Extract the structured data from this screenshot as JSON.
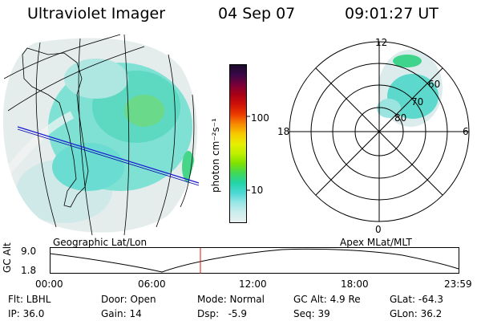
{
  "header": {
    "title": "Ultraviolet Imager",
    "date": "04 Sep 07",
    "time": "09:01:27 UT"
  },
  "colorbar": {
    "label": "photon cm⁻²s⁻¹",
    "ticks": [
      "100",
      "10"
    ],
    "colors": [
      "#1a0a2a",
      "#3a0848",
      "#78003a",
      "#a80015",
      "#d01008",
      "#ec3a00",
      "#f78800",
      "#f7c800",
      "#e8ee00",
      "#c0f000",
      "#7fe000",
      "#40d858",
      "#22d4a8",
      "#4cd8d4",
      "#98e6e6",
      "#cceeee",
      "#e8f0f0"
    ]
  },
  "left_map": {
    "caption": "Geographic Lat/Lon"
  },
  "right_map": {
    "caption": "Apex MLat/MLT",
    "clock_labels": {
      "top": "12",
      "left": "18",
      "right": "6",
      "bottom": "0"
    },
    "ring_labels": [
      "80",
      "70",
      "60"
    ]
  },
  "altitude_plot": {
    "axis_label": "GC Alt",
    "y_ticks": [
      "9.0",
      "1.8"
    ],
    "x_ticks": [
      "00:00",
      "06:00",
      "12:00",
      "18:00",
      "23:59"
    ]
  },
  "info": {
    "flt": "Flt: LBHL",
    "ip": "IP: 36.0",
    "door": "Door: Open",
    "gain": "Gain: 14",
    "mode": "Mode: Normal",
    "dsp": "Dsp:   -5.9",
    "gcalt": "GC Alt: 4.9 Re",
    "seq": "Seq: 39",
    "glat": "GLat: -64.3",
    "glon": "GLon: 36.2"
  }
}
